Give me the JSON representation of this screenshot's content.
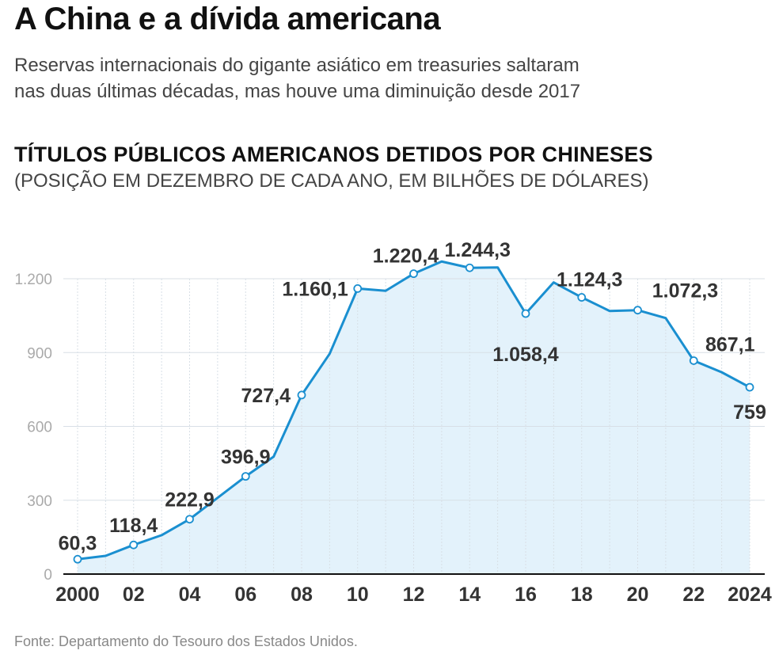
{
  "header": {
    "title": "A China e a dívida americana",
    "subtitle_line1": "Reservas internacionais do gigante asiático em treasuries saltaram",
    "subtitle_line2": "nas duas últimas décadas, mas houve uma diminuição desde 2017"
  },
  "chart_data": {
    "type": "area",
    "title": "TÍTULOS PÚBLICOS AMERICANOS DETIDOS POR CHINESES",
    "subtitle": "(POSIÇÃO EM DEZEMBRO DE CADA ANO, EM BILHÕES DE DÓLARES)",
    "xlabel": "",
    "ylabel": "",
    "x": [
      2000,
      2001,
      2002,
      2003,
      2004,
      2005,
      2006,
      2007,
      2008,
      2009,
      2010,
      2011,
      2012,
      2013,
      2014,
      2015,
      2016,
      2017,
      2018,
      2019,
      2020,
      2021,
      2022,
      2023,
      2024
    ],
    "values": [
      60.3,
      74,
      118.4,
      158,
      222.9,
      310,
      396.9,
      477,
      727.4,
      895,
      1160.1,
      1151,
      1220.4,
      1270,
      1244.3,
      1246,
      1058.4,
      1185,
      1124.3,
      1069,
      1072.3,
      1040,
      867.1,
      820,
      759
    ],
    "labeled_points": [
      {
        "x": 2000,
        "label": "60,3"
      },
      {
        "x": 2002,
        "label": "118,4"
      },
      {
        "x": 2004,
        "label": "222,9"
      },
      {
        "x": 2006,
        "label": "396,9"
      },
      {
        "x": 2008,
        "label": "727,4"
      },
      {
        "x": 2010,
        "label": "1.160,1"
      },
      {
        "x": 2012,
        "label": "1.220,4"
      },
      {
        "x": 2014,
        "label": "1.244,3"
      },
      {
        "x": 2016,
        "label": "1.058,4"
      },
      {
        "x": 2018,
        "label": "1.124,3"
      },
      {
        "x": 2020,
        "label": "1.072,3"
      },
      {
        "x": 2022,
        "label": "867,1"
      },
      {
        "x": 2024,
        "label": "759"
      }
    ],
    "ylim": [
      0,
      1200
    ],
    "yticks": [
      0,
      300,
      600,
      900,
      1200
    ],
    "ytick_labels": [
      "0",
      "300",
      "600",
      "900",
      "1.200"
    ],
    "xticks": [
      2000,
      2002,
      2004,
      2006,
      2008,
      2010,
      2012,
      2014,
      2016,
      2018,
      2020,
      2022,
      2024
    ],
    "xtick_labels": [
      "2000",
      "02",
      "04",
      "06",
      "08",
      "10",
      "12",
      "14",
      "16",
      "18",
      "20",
      "22",
      "2024"
    ],
    "grid": true,
    "colors": {
      "line": "#1a8fd0",
      "fill": "#e3f2fb",
      "grid": "#d8dfe6",
      "axis": "#111111",
      "ytick": "#aaaaaa",
      "label": "#333333"
    }
  },
  "footer": {
    "source": "Fonte: Departamento do Tesouro dos Estados Unidos."
  }
}
